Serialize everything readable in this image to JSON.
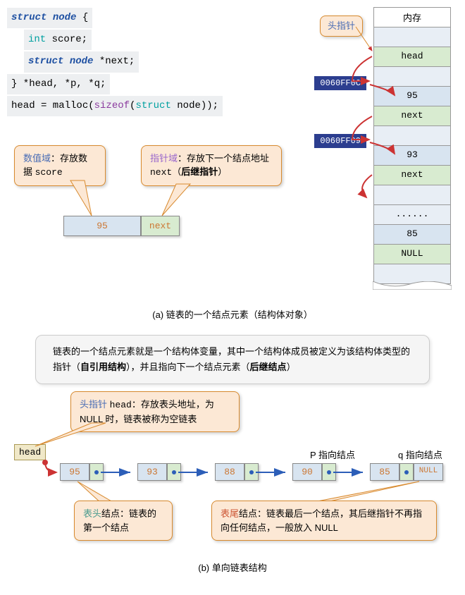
{
  "code": {
    "line1_struct": "struct",
    "line1_node": "node",
    "line1_brace": " {",
    "line2_int": "int",
    "line2_rest": " score;",
    "line3_struct": "struct",
    "line3_node": "node",
    "line3_rest": " *next;",
    "line4": "} *head, *p, *q;",
    "line5_a": "head = malloc(",
    "line5_sizeof": "sizeof",
    "line5_b": "(",
    "line5_struct": "struct",
    "line5_c": " node));"
  },
  "callouts": {
    "data_field_label": "数值域",
    "data_field_text": "：存放数据 ",
    "data_field_var": "score",
    "ptr_field_label": "指针域",
    "ptr_field_text1": "：存放下一个结点地址 ",
    "ptr_field_var": "next",
    "ptr_field_text2": "（",
    "ptr_field_bold": "后继指针",
    "ptr_field_text3": "）",
    "head_ptr": "头指针",
    "head_ptr_b_label": "头指针 ",
    "head_ptr_b_var": "head",
    "head_ptr_b_text": "：存放表头地址，为 NULL 时，链表被称为空链表",
    "table_head_label": "表头",
    "table_head_text": "结点：链表的第一个结点",
    "table_tail_label": "表尾",
    "table_tail_text": "结点：链表最后一个结点，其后继指针不再指向任何结点，一般放入 NULL"
  },
  "node_demo": {
    "value": "95",
    "next": "next"
  },
  "memory": {
    "header": "内存",
    "cells": [
      {
        "text": "",
        "cls": "mem-light"
      },
      {
        "text": "head",
        "cls": "mem-green"
      },
      {
        "text": "",
        "cls": "mem-light"
      },
      {
        "text": "95",
        "cls": "mem-blue"
      },
      {
        "text": "next",
        "cls": "mem-green"
      },
      {
        "text": "",
        "cls": "mem-light"
      },
      {
        "text": "93",
        "cls": "mem-blue"
      },
      {
        "text": "next",
        "cls": "mem-green"
      },
      {
        "text": "",
        "cls": "mem-light"
      },
      {
        "text": "......",
        "cls": "mem-light"
      },
      {
        "text": "85",
        "cls": "mem-blue"
      },
      {
        "text": "NULL",
        "cls": "mem-green"
      },
      {
        "text": "",
        "cls": "mem-light"
      }
    ],
    "addr1": "0060FF0C",
    "addr2": "0060FF09"
  },
  "captions": {
    "a": "(a) 链表的一个结点元素（结构体对象）",
    "b": "(b) 单向链表结构"
  },
  "explain": {
    "text1": "链表的一个结点元素就是一个结构体变量，其中一个结构体成员被定义为该结构体类型的指针（",
    "bold1": "自引用结构",
    "text2": "），并且指向下一个结点元素（",
    "bold2": "后继结点",
    "text3": "）"
  },
  "linked_list": {
    "head_label": "head",
    "p_label": "P 指向结点",
    "q_label": "q 指向结点",
    "null": "NULL",
    "nodes": [
      "95",
      "93",
      "88",
      "90",
      "85"
    ],
    "node_color_value": "#d8e4f0",
    "node_color_ptr": "#d8ebd0",
    "arrow_color": "#2c5eb8"
  },
  "style": {
    "callout_bg": "#fce8d5",
    "callout_border": "#d88a2e",
    "code_bg": "#edeff1",
    "addr_bg": "#2c3e8f"
  }
}
